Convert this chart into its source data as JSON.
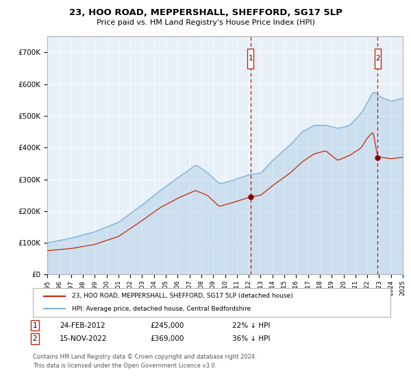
{
  "title": "23, HOO ROAD, MEPPERSHALL, SHEFFORD, SG17 5LP",
  "subtitle": "Price paid vs. HM Land Registry's House Price Index (HPI)",
  "background_color": "#e8f0f8",
  "plot_bg_color": "#e8f0f8",
  "hpi_color": "#7ab0d8",
  "property_color": "#cc2200",
  "marker_color": "#8b0000",
  "dashed_color": "#cc0000",
  "annotation1_date": "24-FEB-2012",
  "annotation1_price": "£245,000",
  "annotation1_label": "22% ↓ HPI",
  "annotation2_date": "15-NOV-2022",
  "annotation2_price": "£369,000",
  "annotation2_label": "36% ↓ HPI",
  "legend_label1": "23, HOO ROAD, MEPPERSHALL, SHEFFORD, SG17 5LP (detached house)",
  "legend_label2": "HPI: Average price, detached house, Central Bedfordshire",
  "footer1": "Contains HM Land Registry data © Crown copyright and database right 2024.",
  "footer2": "This data is licensed under the Open Government Licence v3.0.",
  "ylim": [
    0,
    750000
  ],
  "yticks": [
    0,
    100000,
    200000,
    300000,
    400000,
    500000,
    600000,
    700000
  ],
  "ytick_labels": [
    "£0",
    "£100K",
    "£200K",
    "£300K",
    "£400K",
    "£500K",
    "£600K",
    "£700K"
  ],
  "year_start": 1995,
  "year_end": 2025,
  "sale1_year": 2012.15,
  "sale1_price": 245000,
  "sale2_year": 2022.88,
  "sale2_price": 369000
}
